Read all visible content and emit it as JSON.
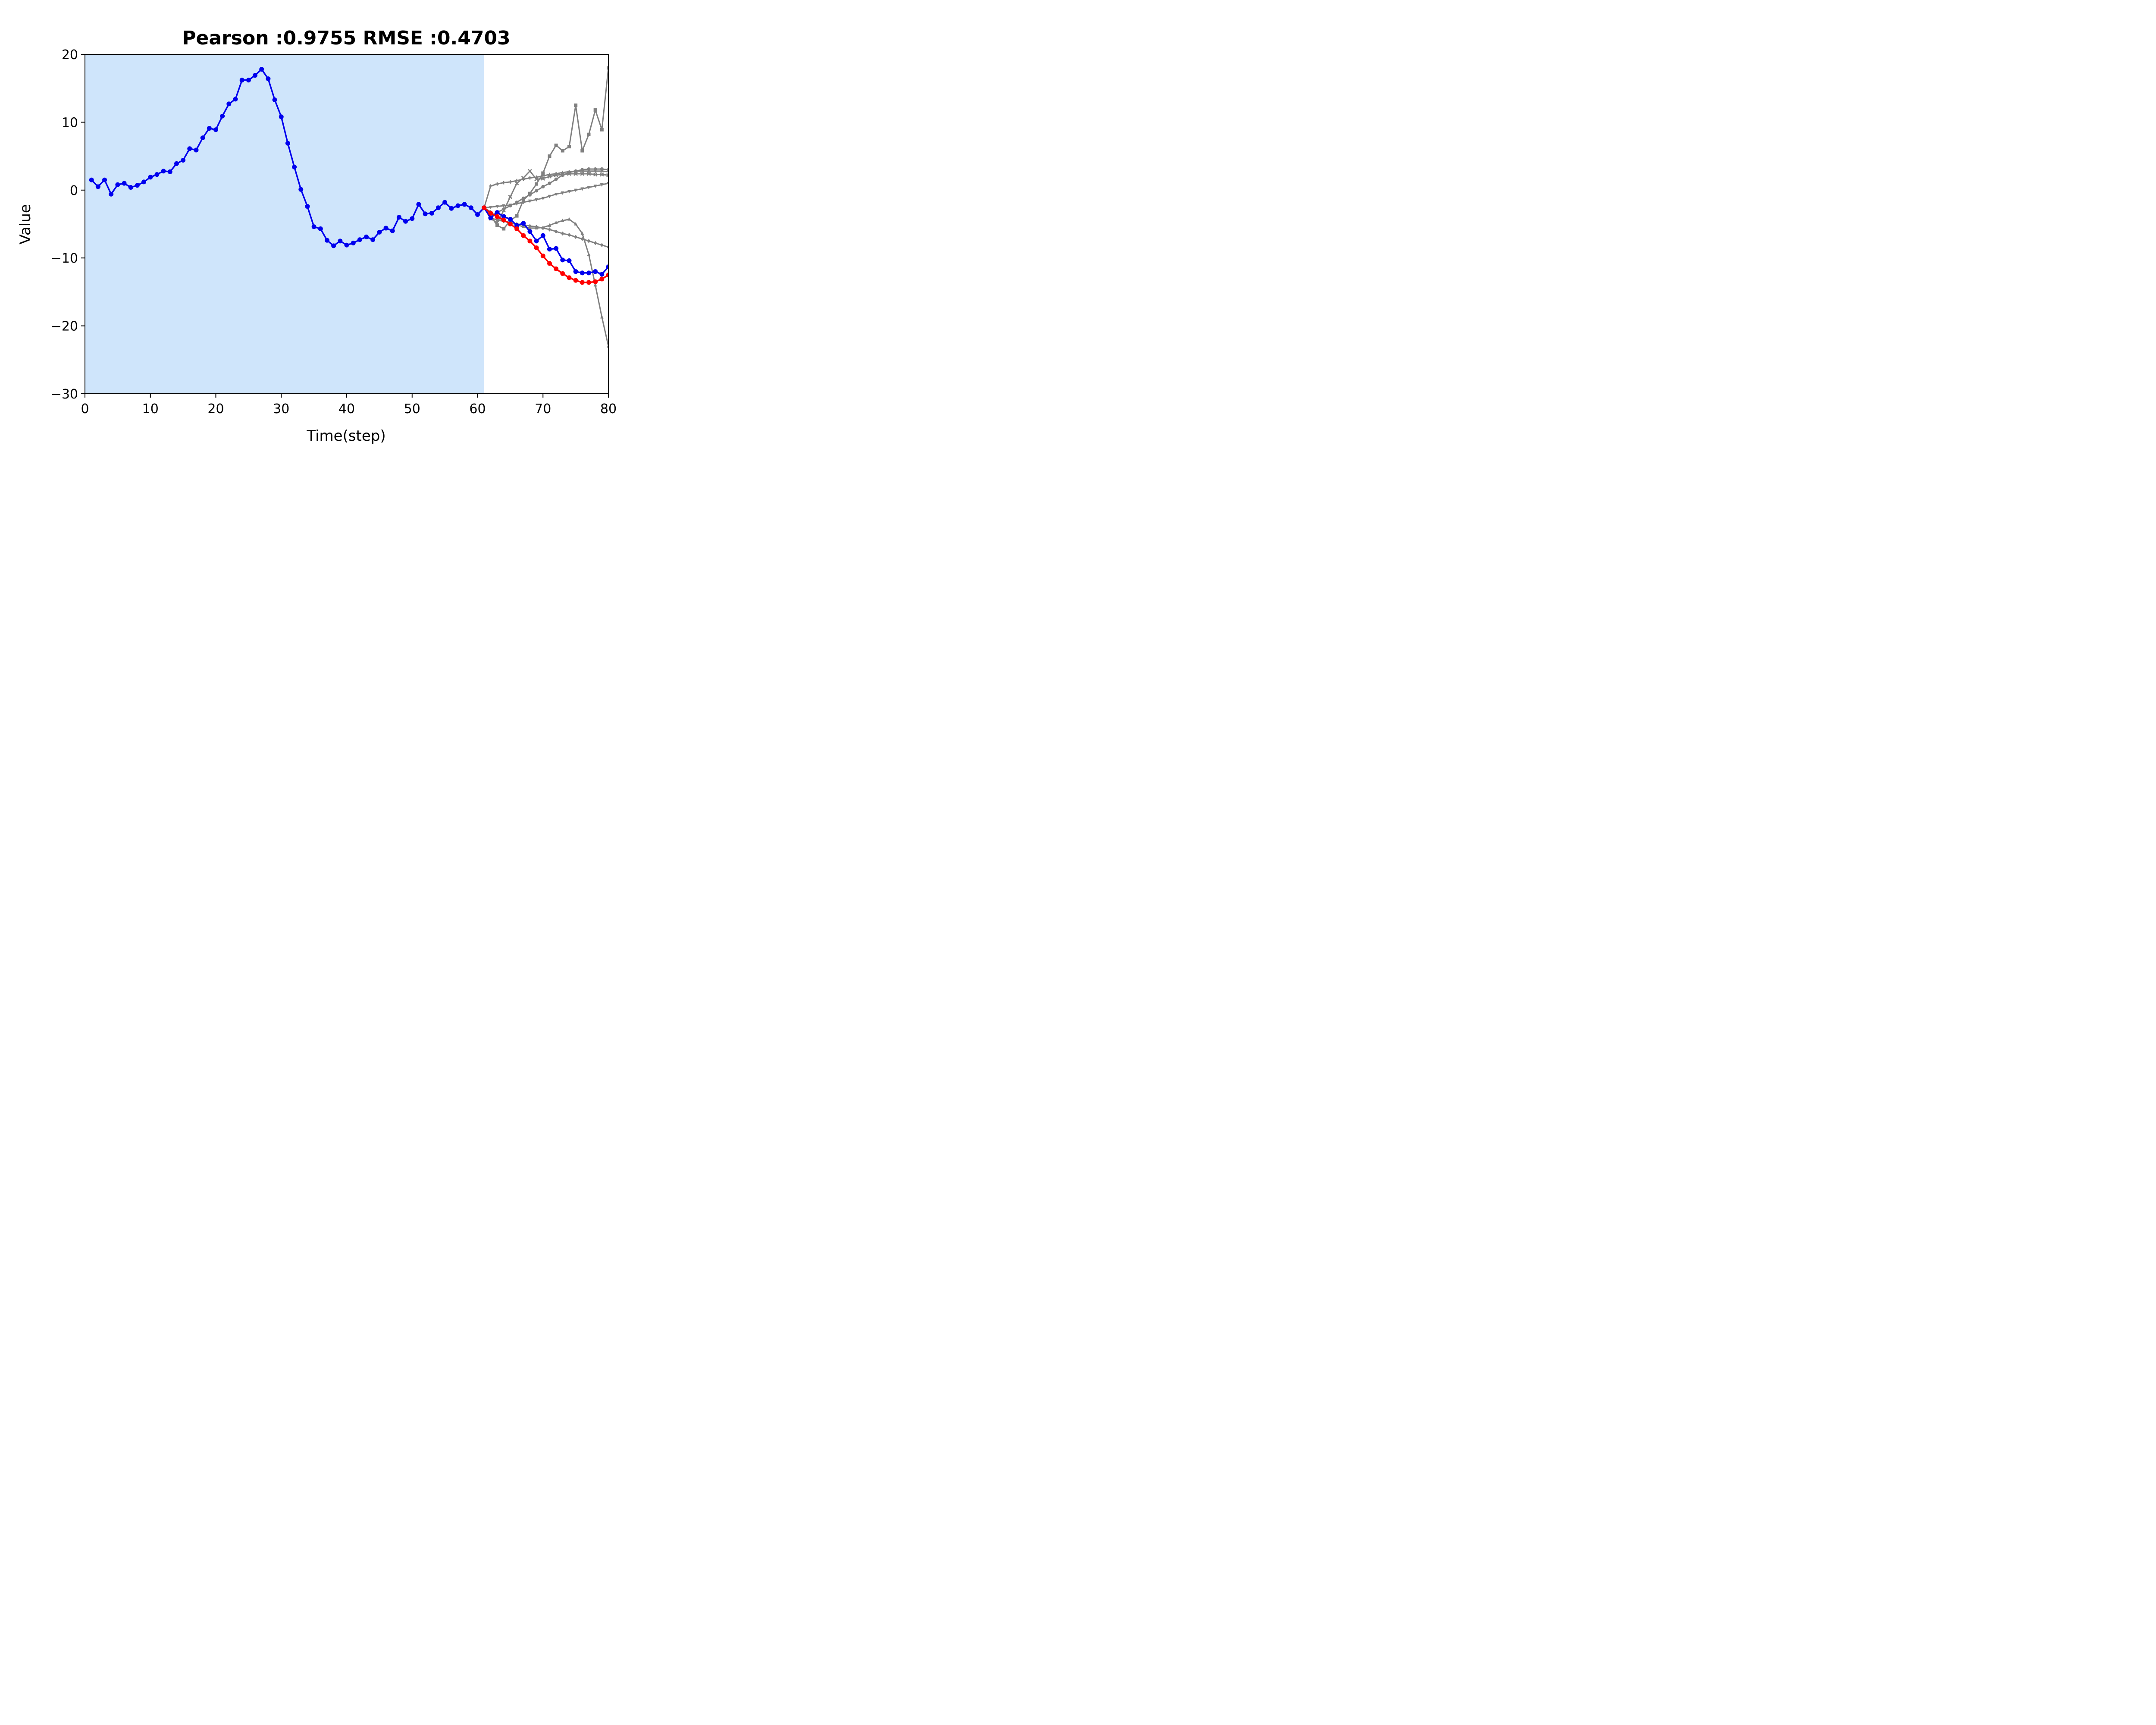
{
  "chart_data": {
    "type": "line",
    "title": "Pearson :0.9755  RMSE :0.4703",
    "xlabel": "Time(step)",
    "ylabel": "Value",
    "xlim": [
      0,
      80
    ],
    "ylim": [
      -30,
      20
    ],
    "xticks": [
      0,
      10,
      20,
      30,
      40,
      50,
      60,
      70,
      80
    ],
    "yticks": [
      20,
      10,
      0,
      -10,
      -20,
      -30
    ],
    "ytick_labels": [
      "20",
      "10",
      "0",
      "−10",
      "−20",
      "−30"
    ],
    "grid": false,
    "shaded_region": {
      "x": [
        0,
        61
      ],
      "color": "#cfe5fb"
    },
    "colors": {
      "observed": "#0000ee",
      "predicted": "#ff0000",
      "ensemble": "#808080"
    },
    "series": [
      {
        "role": "observed",
        "color": "#0000ee",
        "marker": "circle",
        "x": [
          1,
          2,
          3,
          4,
          5,
          6,
          7,
          8,
          9,
          10,
          11,
          12,
          13,
          14,
          15,
          16,
          17,
          18,
          19,
          20,
          21,
          22,
          23,
          24,
          25,
          26,
          27,
          28,
          29,
          30,
          31,
          32,
          33,
          34,
          35,
          36,
          37,
          38,
          39,
          40,
          41,
          42,
          43,
          44,
          45,
          46,
          47,
          48,
          49,
          50,
          51,
          52,
          53,
          54,
          55,
          56,
          57,
          58,
          59,
          60,
          61,
          62,
          63,
          64,
          65,
          66,
          67,
          68,
          69,
          70,
          71,
          72,
          73,
          74,
          75,
          76,
          77,
          78,
          79,
          80
        ],
        "values": [
          1.5,
          0.5,
          1.5,
          -0.6,
          0.8,
          1.0,
          0.4,
          0.7,
          1.2,
          1.9,
          2.3,
          2.8,
          2.7,
          3.9,
          4.4,
          6.1,
          5.9,
          7.7,
          9.1,
          8.9,
          10.9,
          12.7,
          13.4,
          16.2,
          16.2,
          16.9,
          17.8,
          16.4,
          13.3,
          10.8,
          6.9,
          3.4,
          0.1,
          -2.4,
          -5.4,
          -5.7,
          -7.4,
          -8.2,
          -7.5,
          -8.1,
          -7.8,
          -7.3,
          -6.9,
          -7.3,
          -6.2,
          -5.6,
          -6.0,
          -4.0,
          -4.6,
          -4.2,
          -2.1,
          -3.5,
          -3.4,
          -2.6,
          -1.8,
          -2.7,
          -2.3,
          -2.1,
          -2.6,
          -3.6,
          -2.6,
          -4.1,
          -3.3,
          -3.9,
          -4.3,
          -5.2,
          -4.9,
          -6.1,
          -7.5,
          -6.7,
          -8.7,
          -8.6,
          -10.3,
          -10.4,
          -12.0,
          -12.2,
          -12.2,
          -12.0,
          -12.4,
          -11.3
        ]
      },
      {
        "role": "predicted",
        "color": "#ff0000",
        "marker": "circle",
        "x": [
          61,
          62,
          63,
          64,
          65,
          66,
          67,
          68,
          69,
          70,
          71,
          72,
          73,
          74,
          75,
          76,
          77,
          78,
          79,
          80
        ],
        "values": [
          -2.6,
          -3.4,
          -3.9,
          -4.4,
          -5.0,
          -5.7,
          -6.7,
          -7.5,
          -8.5,
          -9.7,
          -10.8,
          -11.6,
          -12.3,
          -12.9,
          -13.3,
          -13.6,
          -13.6,
          -13.5,
          -13.1,
          -12.5
        ]
      },
      {
        "role": "ensemble",
        "color": "#808080",
        "marker": "square",
        "x": [
          61,
          62,
          63,
          64,
          65,
          66,
          67,
          68,
          69,
          70,
          71,
          72,
          73,
          74,
          75,
          76,
          77,
          78,
          79,
          80
        ],
        "values": [
          -2.6,
          -3.8,
          -5.2,
          -5.7,
          -4.5,
          -3.8,
          -1.5,
          -0.5,
          0.9,
          2.5,
          5.0,
          6.6,
          5.8,
          6.4,
          12.5,
          5.8,
          8.2,
          11.8,
          8.9,
          18.0
        ]
      },
      {
        "role": "ensemble",
        "color": "#808080",
        "marker": "triangle-up",
        "x": [
          61,
          62,
          63,
          64,
          65,
          66,
          67,
          68,
          69,
          70,
          71,
          72,
          73,
          74,
          75,
          76,
          77,
          78,
          79,
          80
        ],
        "values": [
          -2.6,
          -3.2,
          -4.0,
          -4.5,
          -4.8,
          -5.1,
          -5.4,
          -5.6,
          -5.6,
          -5.5,
          -5.2,
          -4.8,
          -4.5,
          -4.3,
          -5.0,
          -6.4,
          -9.5,
          -14.0,
          -18.7,
          -23.0
        ]
      },
      {
        "role": "ensemble",
        "color": "#808080",
        "marker": "triangle-down",
        "x": [
          61,
          62,
          63,
          64,
          65,
          66,
          67,
          68,
          69,
          70,
          71,
          72,
          73,
          74,
          75,
          76,
          77,
          78,
          79,
          80
        ],
        "values": [
          -2.6,
          -2.5,
          -2.4,
          -2.3,
          -2.2,
          -2.0,
          -1.8,
          -1.6,
          -1.4,
          -1.2,
          -0.9,
          -0.6,
          -0.4,
          -0.2,
          0.0,
          0.2,
          0.4,
          0.6,
          0.8,
          1.0
        ]
      },
      {
        "role": "ensemble",
        "color": "#808080",
        "marker": "diamond",
        "x": [
          61,
          62,
          63,
          64,
          65,
          66,
          67,
          68,
          69,
          70,
          71,
          72,
          73,
          74,
          75,
          76,
          77,
          78,
          79,
          80
        ],
        "values": [
          -2.6,
          -4.1,
          -4.4,
          -4.6,
          -4.8,
          -5.0,
          -5.1,
          -5.3,
          -5.4,
          -5.6,
          -5.8,
          -6.1,
          -6.4,
          -6.6,
          -6.9,
          -7.2,
          -7.5,
          -7.8,
          -8.1,
          -8.4
        ]
      },
      {
        "role": "ensemble",
        "color": "#808080",
        "marker": "circle",
        "x": [
          61,
          62,
          63,
          64,
          65,
          66,
          67,
          68,
          69,
          70,
          71,
          72,
          73,
          74,
          75,
          76,
          77,
          78,
          79,
          80
        ],
        "values": [
          -2.6,
          -3.8,
          -3.3,
          -2.8,
          -2.3,
          -1.8,
          -1.2,
          -0.7,
          -0.1,
          0.5,
          1.0,
          1.6,
          2.2,
          2.6,
          2.8,
          3.0,
          3.1,
          3.1,
          3.1,
          3.0
        ]
      },
      {
        "role": "ensemble",
        "color": "#808080",
        "marker": "plus",
        "x": [
          61,
          62,
          63,
          64,
          65,
          66,
          67,
          68,
          69,
          70,
          71,
          72,
          73,
          74,
          75,
          76,
          77,
          78,
          79,
          80
        ],
        "values": [
          -2.6,
          0.6,
          0.9,
          1.1,
          1.2,
          1.4,
          1.6,
          1.8,
          1.9,
          2.1,
          2.3,
          2.4,
          2.6,
          2.7,
          2.8,
          2.8,
          2.8,
          2.8,
          2.8,
          2.7
        ]
      },
      {
        "role": "ensemble",
        "color": "#808080",
        "marker": "x",
        "x": [
          61,
          62,
          63,
          64,
          65,
          66,
          67,
          68,
          69,
          70,
          71,
          72,
          73,
          74,
          75,
          76,
          77,
          78,
          79,
          80
        ],
        "values": [
          -2.6,
          -4.2,
          -4.8,
          -3.0,
          -1.0,
          1.0,
          1.8,
          2.8,
          1.6,
          1.7,
          2.0,
          2.2,
          2.3,
          2.4,
          2.4,
          2.4,
          2.4,
          2.3,
          2.3,
          2.2
        ]
      }
    ]
  }
}
